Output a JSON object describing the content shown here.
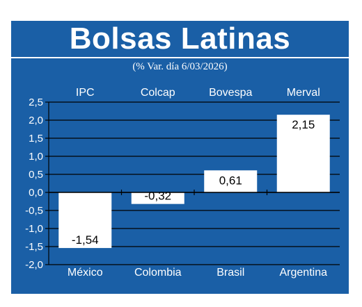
{
  "header": {
    "title": "Bolsas Latinas"
  },
  "subtitle": "(% Var. día 6/03/2026)",
  "colors": {
    "background": "#1a5fa6",
    "bar": "#ffffff",
    "text": "#ffffff",
    "value_text": "#000000"
  },
  "chart_data": {
    "type": "bar",
    "title": "Bolsas Latinas",
    "subtitle": "(% Var. día 6/03/2026)",
    "categories": [
      "México",
      "Colombia",
      "Brasil",
      "Argentina"
    ],
    "index_names": [
      "IPC",
      "Colcap",
      "Bovespa",
      "Merval"
    ],
    "values": [
      -1.54,
      -0.32,
      0.61,
      2.15
    ],
    "value_labels": [
      "-1,54",
      "-0,32",
      "0,61",
      "2,15"
    ],
    "ylim": [
      -2.0,
      2.5
    ],
    "yticks": [
      2.5,
      2.0,
      1.5,
      1.0,
      0.5,
      0.0,
      -0.5,
      -1.0,
      -1.5,
      -2.0
    ],
    "ytick_labels": [
      "2,5",
      "2,0",
      "1,5",
      "1,0",
      "0,5",
      "0,0",
      "-0,5",
      "-1,0",
      "-1,5",
      "-2,0"
    ],
    "grid": true,
    "xlabel": "",
    "ylabel": ""
  }
}
